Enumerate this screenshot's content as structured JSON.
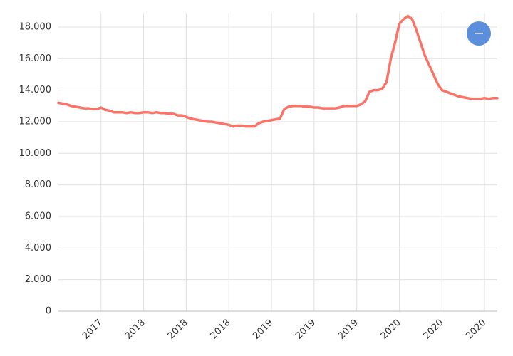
{
  "chart_data": {
    "type": "line",
    "x": [
      0,
      1,
      2,
      3,
      4,
      5,
      6,
      7,
      8,
      9,
      10,
      11,
      12,
      13,
      14,
      15,
      16,
      17,
      18,
      19,
      20,
      21,
      22,
      23,
      24,
      25,
      26,
      27,
      28,
      29,
      30,
      31,
      32,
      33,
      34,
      35,
      36,
      37,
      38,
      39,
      40,
      41,
      42,
      43,
      44,
      45,
      46,
      47,
      48,
      49,
      50,
      51,
      52,
      53,
      54,
      55,
      56,
      57,
      58,
      59,
      60,
      61,
      62,
      63,
      64,
      65,
      66,
      67,
      68,
      69,
      70,
      71,
      72,
      73,
      74,
      75,
      76,
      77,
      78,
      79,
      80,
      81,
      82,
      83,
      84,
      85,
      86,
      87,
      88,
      89,
      90,
      91,
      92,
      93,
      94,
      95,
      96,
      97,
      98,
      99,
      100,
      101,
      102,
      103
    ],
    "series": [
      {
        "color": "#fa7366",
        "values": [
          13200,
          13150,
          13100,
          13000,
          12950,
          12900,
          12850,
          12850,
          12800,
          12800,
          12900,
          12750,
          12700,
          12600,
          12600,
          12600,
          12550,
          12600,
          12550,
          12550,
          12600,
          12600,
          12550,
          12600,
          12550,
          12550,
          12500,
          12500,
          12400,
          12400,
          12300,
          12200,
          12150,
          12100,
          12050,
          12000,
          12000,
          11950,
          11900,
          11850,
          11800,
          11700,
          11750,
          11750,
          11700,
          11700,
          11700,
          11900,
          12000,
          12050,
          12100,
          12150,
          12200,
          12800,
          12950,
          13000,
          13000,
          13000,
          12950,
          12950,
          12900,
          12900,
          12850,
          12850,
          12850,
          12850,
          12900,
          13000,
          13000,
          13000,
          13000,
          13100,
          13300,
          13900,
          14000,
          14000,
          14100,
          14500,
          16000,
          17000,
          18200,
          18500,
          18700,
          18500,
          17800,
          17000,
          16200,
          15600,
          15000,
          14400,
          14000,
          13900,
          13800,
          13700,
          13600,
          13550,
          13500,
          13450,
          13450,
          13450,
          13500,
          13450,
          13500,
          13500
        ]
      }
    ],
    "xlim": [
      0,
      103
    ],
    "xticks": [
      {
        "value": 10,
        "label": "2017"
      },
      {
        "value": 20,
        "label": "2018"
      },
      {
        "value": 30,
        "label": "2018"
      },
      {
        "value": 40,
        "label": "2018"
      },
      {
        "value": 50,
        "label": "2019"
      },
      {
        "value": 60,
        "label": "2019"
      },
      {
        "value": 70,
        "label": "2019"
      },
      {
        "value": 80,
        "label": "2020"
      },
      {
        "value": 90,
        "label": "2020"
      },
      {
        "value": 100,
        "label": "2020"
      }
    ],
    "ylim": [
      0,
      18900
    ],
    "yticks": [
      0,
      {
        "value": 2000,
        "label": "2.000"
      },
      {
        "value": 4000,
        "label": "4.000"
      },
      {
        "value": 6000,
        "label": "6.000"
      },
      {
        "value": 8000,
        "label": "8.000"
      },
      {
        "value": 10000,
        "label": "10.000"
      },
      {
        "value": 12000,
        "label": "12.000"
      },
      {
        "value": 14000,
        "label": "14.000"
      },
      {
        "value": 16000,
        "label": "16.000"
      },
      {
        "value": 18000,
        "label": "18.000"
      }
    ],
    "grid": true
  }
}
